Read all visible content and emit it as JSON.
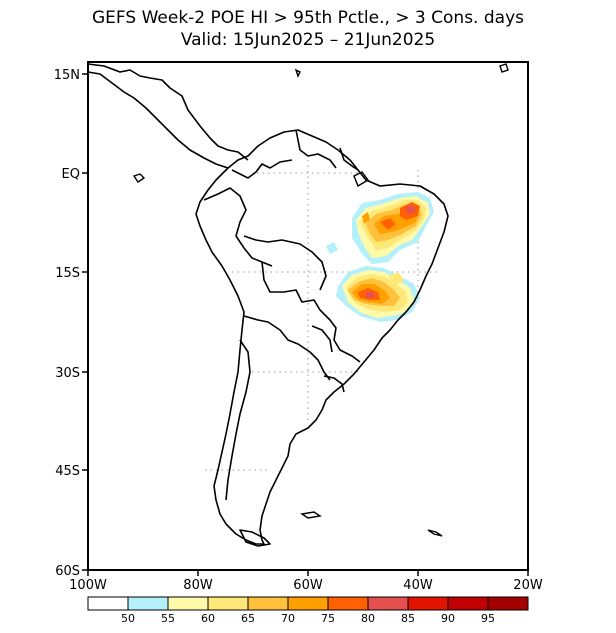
{
  "title_line1": "GEFS Week-2 POE HI > 95th Pctle., > 3 Cons. days",
  "title_line2": "Valid: 15Jun2025 – 21Jun2025",
  "map": {
    "lat_ticks": [
      "15N",
      "EQ",
      "15S",
      "30S",
      "45S",
      "60S"
    ],
    "lon_ticks": [
      "100W",
      "80W",
      "60W",
      "40W",
      "20W"
    ],
    "lat_range": [
      -60,
      15
    ],
    "lon_range": [
      -100,
      -20
    ],
    "grid": "dotted at 15° lat / 20° lon"
  },
  "colorbar": {
    "labels": [
      "50",
      "55",
      "60",
      "65",
      "70",
      "75",
      "80",
      "85",
      "90",
      "95"
    ],
    "colors": [
      "#ffffff",
      "#b4f0fa",
      "#fffaaa",
      "#ffe878",
      "#ffc03c",
      "#ffa000",
      "#ff6000",
      "#e65050",
      "#e11400",
      "#c00000",
      "#a50000"
    ]
  }
}
